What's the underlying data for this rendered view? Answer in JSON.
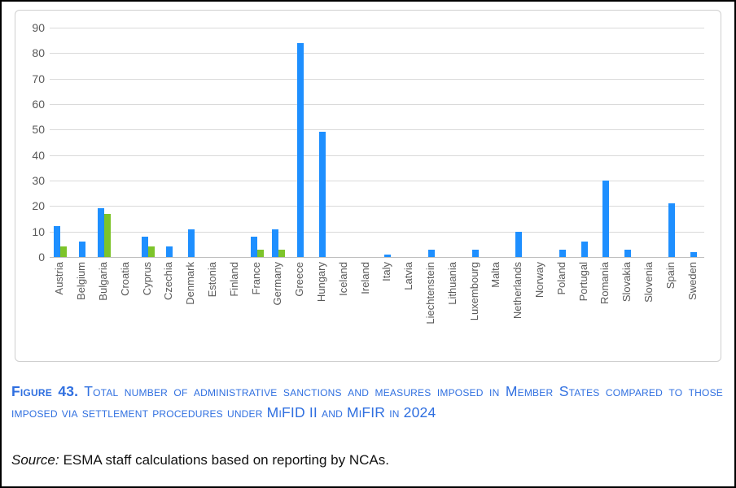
{
  "figure": {
    "label": "Figure 43.",
    "caption": "Total number of administrative sanctions and measures imposed in Member States compared to those imposed via settlement procedures under MiFID II and MiFIR in 2024",
    "source_label": "Source:",
    "source_text": "ESMA staff calculations based on reporting by NCAs."
  },
  "colors": {
    "bar_blue": "#1E8FFF",
    "bar_green": "#7DC42A",
    "caption_blue": "#2F6FE0",
    "gridline": "#dadada",
    "axis_line": "#bfbfbf",
    "tick_text": "#595959"
  },
  "chart_data": {
    "type": "bar",
    "title": "",
    "xlabel": "",
    "ylabel": "",
    "ylim": [
      0,
      90
    ],
    "y_ticks": [
      0,
      10,
      20,
      30,
      40,
      50,
      60,
      70,
      80,
      90
    ],
    "grid": true,
    "legend": "none",
    "categories": [
      "Austria",
      "Belgium",
      "Bulgaria",
      "Croatia",
      "Cyprus",
      "Czechia",
      "Denmark",
      "Estonia",
      "Finland",
      "France",
      "Germany",
      "Greece",
      "Hungary",
      "Iceland",
      "Ireland",
      "Italy",
      "Latvia",
      "Liechtenstein",
      "Lithuania",
      "Luxembourg",
      "Malta",
      "Netherlands",
      "Norway",
      "Poland",
      "Portugal",
      "Romania",
      "Slovakia",
      "Slovenia",
      "Spain",
      "Sweden"
    ],
    "series": [
      {
        "name": "Total administrative sanctions and measures",
        "color_key": "bar_blue",
        "values": [
          12,
          6,
          19,
          0,
          8,
          4,
          11,
          0,
          0,
          8,
          11,
          84,
          49,
          0,
          0,
          1,
          0,
          3,
          0,
          3,
          0,
          10,
          0,
          3,
          6,
          30,
          3,
          0,
          21,
          2
        ]
      },
      {
        "name": "Imposed via settlement procedures",
        "color_key": "bar_green",
        "values": [
          4,
          0,
          17,
          0,
          4,
          0,
          0,
          0,
          0,
          3,
          3,
          0,
          0,
          0,
          0,
          0,
          0,
          0,
          0,
          0,
          0,
          0,
          0,
          0,
          0,
          0,
          0,
          0,
          0,
          0
        ]
      }
    ]
  }
}
